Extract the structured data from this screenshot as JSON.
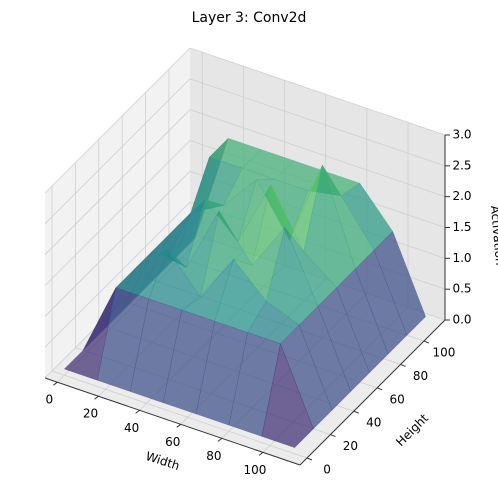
{
  "chart_data": {
    "type": "surface",
    "title": "Layer 3: Conv2d",
    "xlabel": "Width",
    "ylabel": "Height",
    "zlabel": "Activation",
    "cmap": "viridis",
    "alpha": 0.72,
    "x": [
      0,
      16,
      32,
      48,
      64,
      80,
      96,
      112
    ],
    "y": [
      0,
      16,
      32,
      48,
      64,
      80,
      96,
      112
    ],
    "z": [
      [
        0.1,
        0.1,
        0.1,
        0.1,
        0.1,
        0.1,
        0.1,
        0.1
      ],
      [
        0.1,
        1.3,
        1.3,
        1.3,
        1.3,
        1.3,
        1.3,
        0.1
      ],
      [
        0.1,
        1.3,
        1.8,
        1.2,
        2.0,
        1.5,
        1.3,
        0.1
      ],
      [
        0.1,
        1.3,
        1.2,
        2.3,
        1.6,
        2.4,
        1.3,
        0.1
      ],
      [
        0.1,
        1.3,
        2.0,
        1.5,
        2.6,
        1.7,
        1.3,
        0.1
      ],
      [
        0.1,
        1.3,
        1.6,
        2.2,
        1.4,
        2.8,
        1.3,
        0.1
      ],
      [
        0.1,
        1.9,
        1.9,
        1.9,
        1.9,
        2.0,
        1.3,
        0.1
      ],
      [
        0.1,
        1.9,
        1.9,
        1.9,
        1.9,
        1.9,
        1.3,
        0.1
      ]
    ],
    "xlim": [
      -6,
      118
    ],
    "ylim": [
      -6,
      118
    ],
    "zlim": [
      0,
      3
    ],
    "xticks": [
      0,
      20,
      40,
      60,
      80,
      100
    ],
    "yticks": [
      0,
      20,
      40,
      60,
      80,
      100
    ],
    "zticks": [
      {
        "value": 0,
        "label": "0.0"
      },
      {
        "value": 0.5,
        "label": "0.5"
      },
      {
        "value": 1,
        "label": "1.0"
      },
      {
        "value": 1.5,
        "label": "1.5"
      },
      {
        "value": 2,
        "label": "2.0"
      },
      {
        "value": 2.5,
        "label": "2.5"
      },
      {
        "value": 3,
        "label": "3.0"
      }
    ],
    "grid": true
  }
}
